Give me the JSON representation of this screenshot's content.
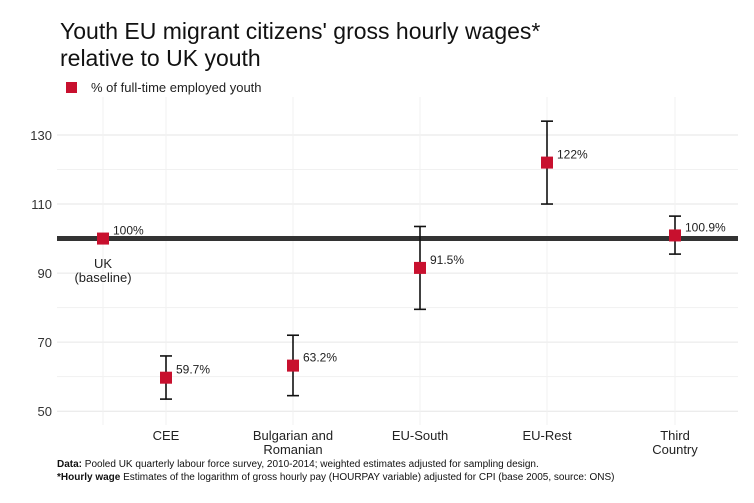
{
  "chart_data": {
    "type": "scatter",
    "title": "Youth EU migrant citizens' gross hourly wages* relative to UK youth",
    "legend": [
      {
        "name": "% of full-time employed youth",
        "color": "#c8102e"
      }
    ],
    "legend_position": "top-left",
    "y_ticks": [
      50,
      70,
      90,
      110,
      130
    ],
    "ylim": [
      46,
      141
    ],
    "grid": true,
    "reference_line": 100,
    "categories": [
      {
        "lines": [
          "UK",
          "(baseline)"
        ],
        "position": "in-plot"
      },
      {
        "lines": [
          "CEE"
        ]
      },
      {
        "lines": [
          "Bulgarian and",
          "Romanian"
        ]
      },
      {
        "lines": [
          "EU-South"
        ]
      },
      {
        "lines": [
          "EU-Rest"
        ]
      },
      {
        "lines": [
          "Third",
          "Country"
        ]
      }
    ],
    "series": [
      {
        "name": "% of full-time employed youth",
        "values": [
          100,
          59.7,
          63.2,
          91.5,
          122,
          100.9
        ],
        "labels": [
          "100%",
          "59.7%",
          "63.2%",
          "91.5%",
          "122%",
          "100.9%"
        ],
        "ci_low": [
          null,
          53.5,
          54.5,
          79.5,
          110,
          95.5
        ],
        "ci_high": [
          null,
          66,
          72,
          103.5,
          134,
          106.5
        ]
      }
    ]
  },
  "footnote": {
    "data_label": "Data:",
    "data_text": " Pooled UK quarterly labour force survey, 2010-2014; weighted estimates adjusted for sampling design.",
    "wage_label": "*Hourly wage",
    "wage_text": " Estimates of the logarithm of gross hourly pay (HOURPAY variable) adjusted for CPI (base 2005, source: ONS)"
  },
  "colors": {
    "marker": "#c8102e",
    "reference_line": "#333333",
    "grid": "#e6e6e6",
    "errorbar": "#111111"
  }
}
